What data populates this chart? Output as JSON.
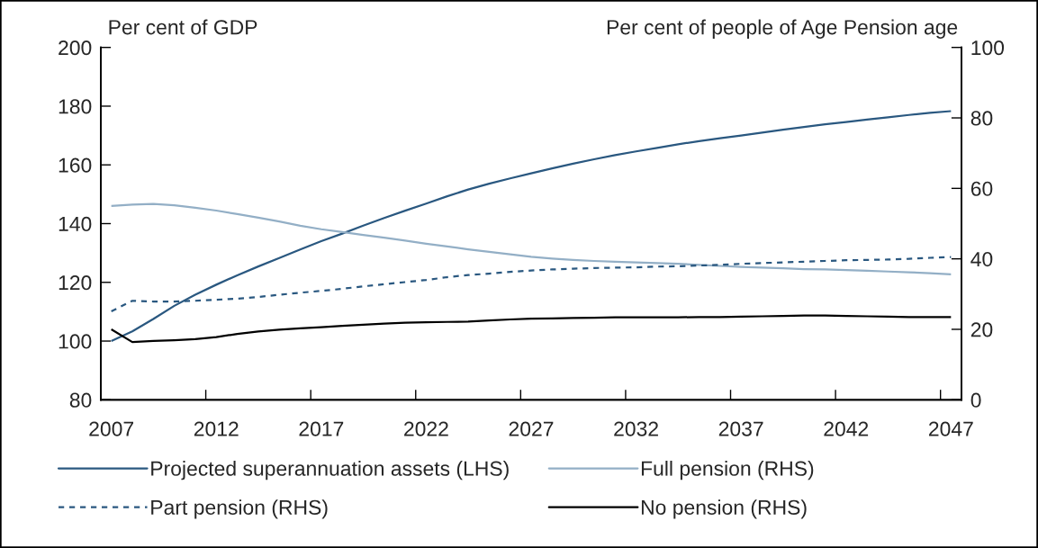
{
  "chart_data": {
    "type": "line",
    "categories": [
      "2007",
      null,
      null,
      null,
      null,
      "2012",
      null,
      null,
      null,
      null,
      "2017",
      null,
      null,
      null,
      null,
      "2022",
      null,
      null,
      null,
      null,
      "2027",
      null,
      null,
      null,
      null,
      "2032",
      null,
      null,
      null,
      null,
      "2037",
      null,
      null,
      null,
      null,
      "2042",
      null,
      null,
      null,
      null,
      "2047"
    ],
    "ylabel": "Per cent of GDP",
    "y2label": "Per cent of people of Age Pension age",
    "ylim": [
      80,
      200
    ],
    "yticks": [
      80,
      100,
      120,
      140,
      160,
      180,
      200
    ],
    "y2lim": [
      0,
      100
    ],
    "y2ticks": [
      0,
      20,
      40,
      60,
      80,
      100
    ],
    "legend": "bottom",
    "series": [
      {
        "name": "Projected superannuation assets (LHS)",
        "color": "#2a5880",
        "axis": "y",
        "values": [
          100,
          103.3,
          107.5,
          112,
          115.8,
          119.2,
          122.4,
          125.4,
          128.3,
          131.2,
          134,
          136.6,
          139.3,
          141.9,
          144.4,
          146.8,
          149.3,
          151.6,
          153.6,
          155.4,
          157.1,
          158.8,
          160.4,
          161.9,
          163.3,
          164.6,
          165.8,
          167,
          168.1,
          169.1,
          170,
          171,
          172,
          172.9,
          173.8,
          174.6,
          175.4,
          176.2,
          177,
          177.7,
          178.3
        ]
      },
      {
        "name": "Full pension (RHS)",
        "color": "#93afc6",
        "axis": "y2",
        "values": [
          55.0,
          55.4,
          55.6,
          55.2,
          54.5,
          53.7,
          52.7,
          51.7,
          50.6,
          49.4,
          48.4,
          47.6,
          46.8,
          46.0,
          45.2,
          44.3,
          43.5,
          42.7,
          42.0,
          41.3,
          40.6,
          40.1,
          39.7,
          39.4,
          39.2,
          39.0,
          38.8,
          38.6,
          38.3,
          38.0,
          37.7,
          37.5,
          37.3,
          37.1,
          37.0,
          36.8,
          36.6,
          36.4,
          36.2,
          35.9,
          35.6
        ]
      },
      {
        "name": "Part pension (RHS)",
        "color": "#2a5880",
        "axis": "y2",
        "line_style": "dashed",
        "values": [
          25.1,
          28.1,
          27.9,
          27.9,
          28.1,
          28.4,
          28.7,
          29.2,
          29.8,
          30.4,
          30.9,
          31.5,
          32.2,
          32.8,
          33.4,
          34.0,
          34.8,
          35.4,
          35.8,
          36.3,
          36.7,
          37.0,
          37.2,
          37.4,
          37.5,
          37.6,
          37.8,
          37.9,
          38.1,
          38.3,
          38.6,
          38.8,
          39.0,
          39.2,
          39.4,
          39.6,
          39.7,
          39.8,
          40.0,
          40.3,
          40.5
        ]
      },
      {
        "name": "No pension (RHS)",
        "color": "#000000",
        "axis": "y2",
        "values": [
          20.0,
          16.4,
          16.7,
          16.9,
          17.2,
          17.8,
          18.7,
          19.4,
          19.9,
          20.3,
          20.6,
          21.0,
          21.3,
          21.6,
          21.9,
          22.0,
          22.1,
          22.2,
          22.5,
          22.8,
          23.0,
          23.1,
          23.2,
          23.3,
          23.4,
          23.4,
          23.4,
          23.4,
          23.5,
          23.5,
          23.6,
          23.7,
          23.8,
          23.9,
          23.9,
          23.8,
          23.7,
          23.6,
          23.5,
          23.5,
          23.5
        ]
      }
    ]
  }
}
